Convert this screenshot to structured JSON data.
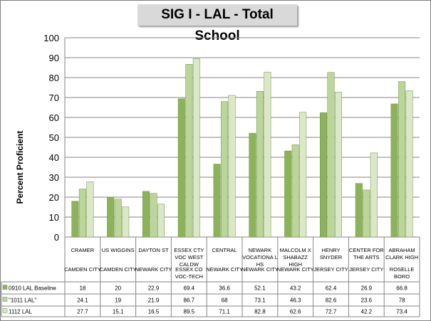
{
  "colors": {
    "s1": "#8db35a",
    "s2": "#bcd59a",
    "s3": "#dbe8c7",
    "grid": "#868686"
  },
  "chart_data": {
    "type": "bar",
    "title": "SIG I - LAL - Total School",
    "ylabel": "Percent Proficient",
    "ylim": [
      0,
      100
    ],
    "yticks": [
      "0",
      "10",
      "20",
      "30",
      "40",
      "50",
      "60",
      "70",
      "80",
      "90",
      "100"
    ],
    "grid": true,
    "categories": [
      {
        "school": "CRAMER",
        "district": "CAMDEN CITY"
      },
      {
        "school": "US WIGGINS",
        "district": "CAMDEN CITY"
      },
      {
        "school": "DAYTON ST",
        "district": "NEWARK CITY"
      },
      {
        "school": "ESSEX CTY VOC WEST CALDW",
        "district": "ESSEX CO VOC-TECH"
      },
      {
        "school": "CENTRAL",
        "district": "NEWARK CITY"
      },
      {
        "school": "NEWARK VOCATIONA L HS",
        "district": "NEWARK CITY"
      },
      {
        "school": "MALCOLM X SHABAZZ HIGH",
        "district": "NEWARK CITY"
      },
      {
        "school": "HENRY SNYDER",
        "district": "JERSEY CITY"
      },
      {
        "school": "CENTER FOR THE ARTS",
        "district": "JERSEY CITY"
      },
      {
        "school": "ABRAHAM CLARK HIGH",
        "district": "ROSELLE BORO"
      }
    ],
    "series": [
      {
        "name": "0910 LAL Baseline",
        "values": [
          18,
          20,
          22.9,
          69.4,
          36.6,
          52.1,
          43.2,
          62.4,
          26.9,
          66.8
        ],
        "labels": [
          "18",
          "20",
          "22.9",
          "69.4",
          "36.6",
          "52.1",
          "43.2",
          "62.4",
          "26.9",
          "66.8"
        ]
      },
      {
        "name": "\"1011 LAL\"",
        "values": [
          24.1,
          19,
          21.9,
          86.7,
          68,
          73.1,
          46.3,
          82.6,
          23.6,
          78
        ],
        "labels": [
          "24.1",
          "19",
          "21.9",
          "86.7",
          "68",
          "73.1",
          "46.3",
          "82.6",
          "23.6",
          "78"
        ]
      },
      {
        "name": "1112 LAL",
        "values": [
          27.7,
          15.1,
          16.5,
          89.5,
          71.1,
          82.8,
          62.6,
          72.7,
          42.2,
          73.4
        ],
        "labels": [
          "27.7",
          "15.1",
          "16.5",
          "89.5",
          "71.1",
          "82.8",
          "62.6",
          "72.7",
          "42.2",
          "73.4"
        ]
      }
    ]
  }
}
